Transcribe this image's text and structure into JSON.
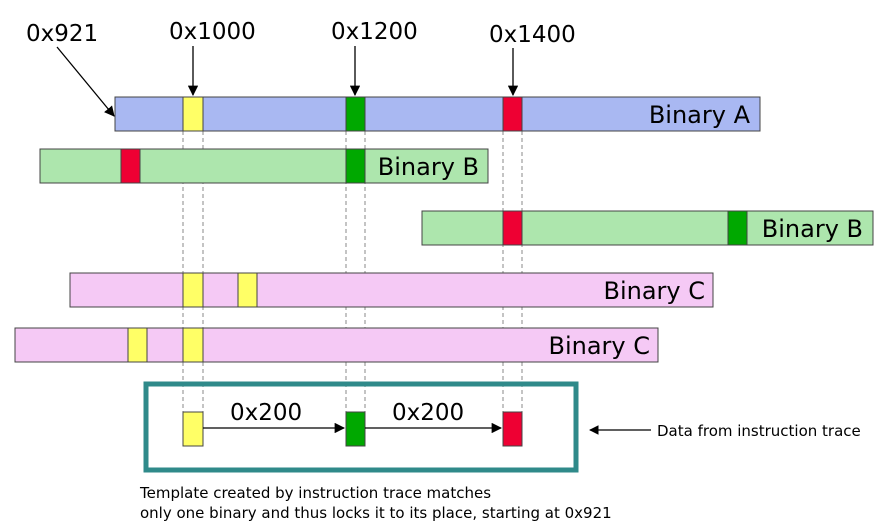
{
  "addresses": {
    "a921": "0x921",
    "a1000": "0x1000",
    "a1200": "0x1200",
    "a1400": "0x1400"
  },
  "binaries": [
    {
      "name": "Binary A",
      "color": "#a9b8f2"
    },
    {
      "name": "Binary B",
      "color": "#ade6ad"
    },
    {
      "name": "Binary B",
      "color": "#ade6ad"
    },
    {
      "name": "Binary C",
      "color": "#f5c9f5"
    },
    {
      "name": "Binary C",
      "color": "#f5c9f5"
    }
  ],
  "marker_colors": {
    "yellow": "#ffff66",
    "green": "#00a800",
    "red": "#ee0033"
  },
  "trace": {
    "offset_1": "0x200",
    "offset_2": "0x200",
    "label": "Data from instruction trace",
    "border_color": "#2f8a8a"
  },
  "caption": {
    "line1": "Template created by instruction trace matches",
    "line2": "only one binary and thus locks it to its place, starting at 0x921"
  }
}
